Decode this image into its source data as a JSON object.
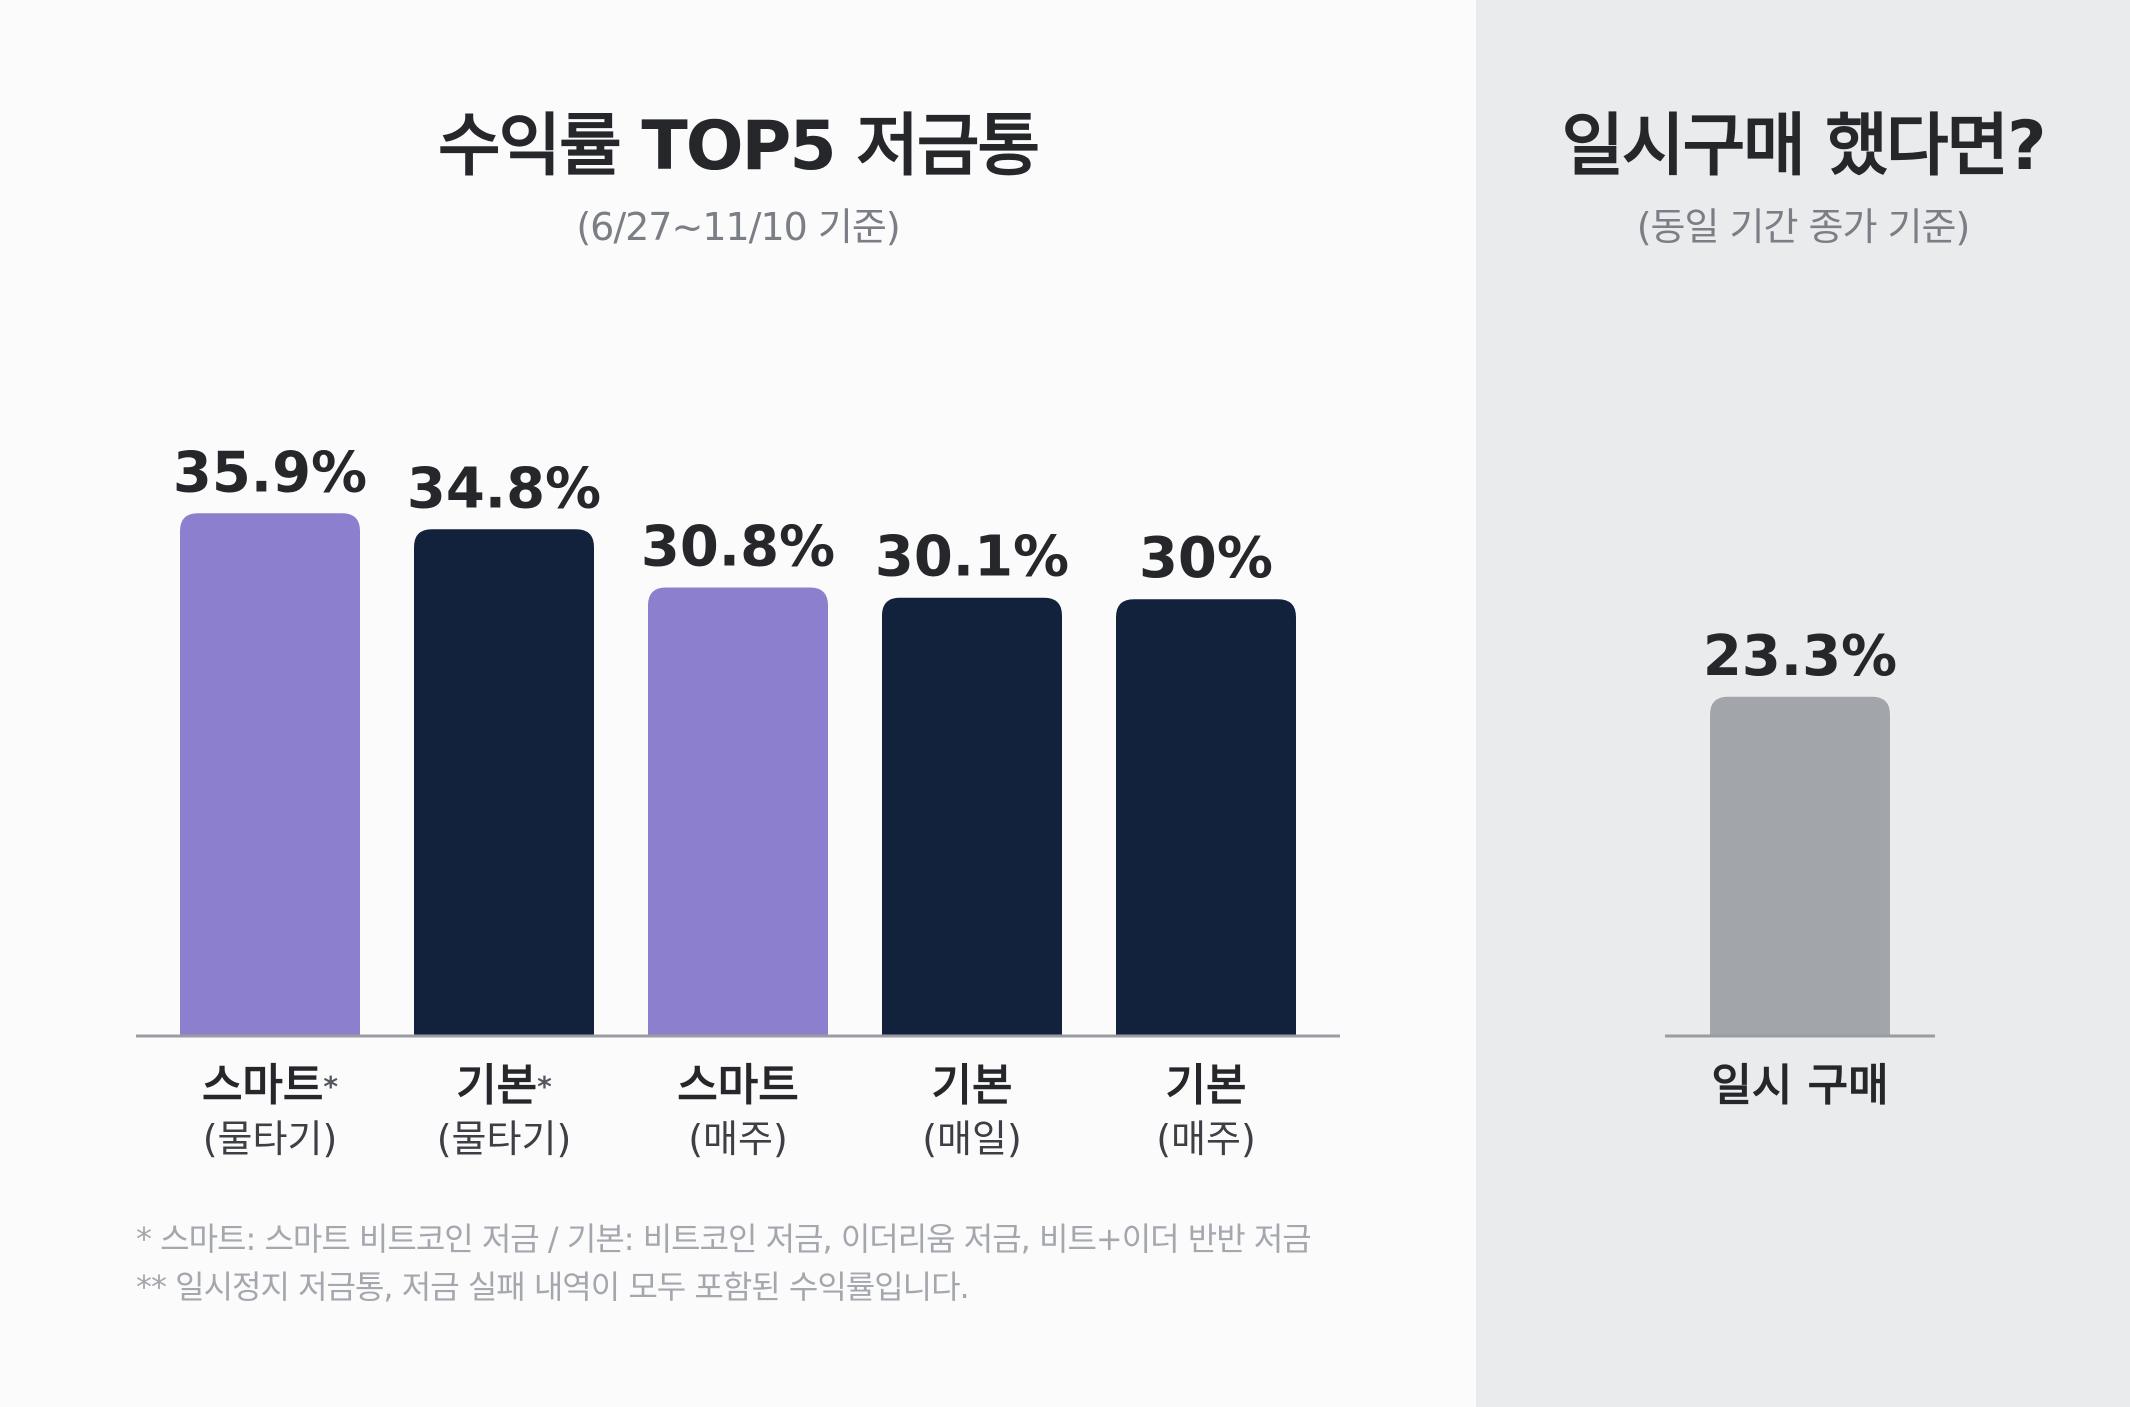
{
  "left": {
    "title": "수익률 TOP5 저금통",
    "subtitle": "(6/27~11/10 기준)"
  },
  "right": {
    "title": "일시구매 했다면?",
    "subtitle": "(동일 기간 종가 기준)"
  },
  "chart_data": [
    {
      "type": "bar",
      "title": "수익률 TOP5 저금통",
      "subtitle": "(6/27~11/10 기준)",
      "categories": [
        {
          "main": "스마트",
          "star": "*",
          "sub": "(물타기)",
          "color": "#8c7fcd"
        },
        {
          "main": "기본",
          "star": "*",
          "sub": "(물타기)",
          "color": "#12223c"
        },
        {
          "main": "스마트",
          "star": "",
          "sub": "(매주)",
          "color": "#8c7fcd"
        },
        {
          "main": "기본",
          "star": "",
          "sub": "(매일)",
          "color": "#12223c"
        },
        {
          "main": "기본",
          "star": "",
          "sub": "(매주)",
          "color": "#12223c"
        }
      ],
      "values": [
        35.9,
        34.8,
        30.8,
        30.1,
        30
      ],
      "value_labels": [
        "35.9%",
        "34.8%",
        "30.8%",
        "30.1%",
        "30%"
      ],
      "unit": "%",
      "ylim": [
        0,
        40
      ]
    },
    {
      "type": "bar",
      "title": "일시구매 했다면?",
      "subtitle": "(동일 기간 종가 기준)",
      "categories": [
        {
          "main": "일시 구매",
          "star": "",
          "sub": "",
          "color": "#a2a5aa"
        }
      ],
      "values": [
        23.3
      ],
      "value_labels": [
        "23.3%"
      ],
      "unit": "%",
      "ylim": [
        0,
        40
      ]
    }
  ],
  "colors": {
    "smart": "#8c7fcd",
    "basic": "#12223c",
    "lump_sum": "#a2a5aa",
    "baseline": "#9a9ca3",
    "right_panel_bg": "#e9ebed",
    "page_bg": "#fbfbfc"
  },
  "footnotes": [
    "* 스마트: 스마트 비트코인 저금 / 기본: 비트코인 저금, 이더리움 저금, 비트+이더 반반 저금",
    "** 일시정지 저금통, 저금 실패 내역이 모두 포함된 수익률입니다."
  ]
}
